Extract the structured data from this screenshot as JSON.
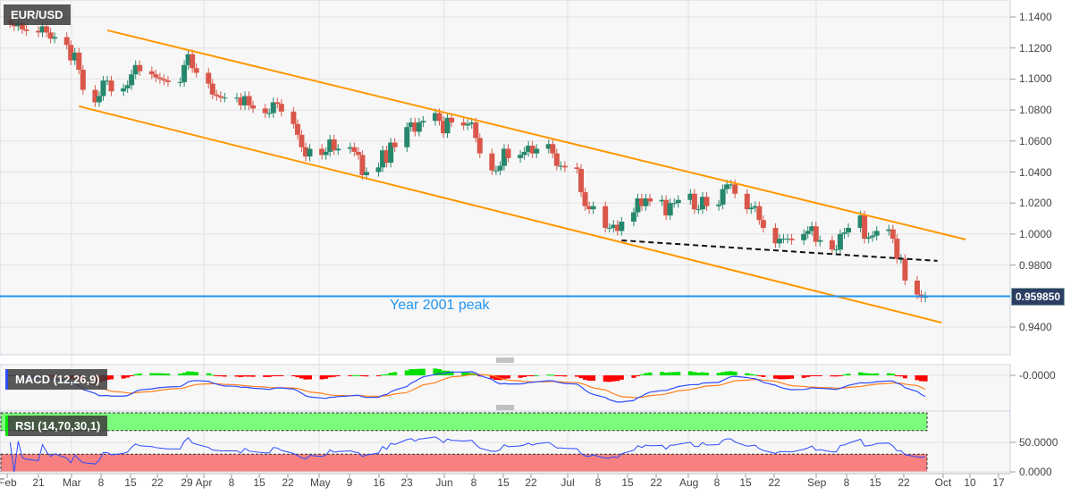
{
  "symbol": "EUR/USD",
  "last_price": "0.959850",
  "annotation": "Year 2001 peak",
  "colors": {
    "up": "#26876c",
    "down": "#d9574a",
    "channel": "#ff9800",
    "level": "#2196f3",
    "macd": "#2d4bff",
    "signal": "#ff7f1e",
    "hist_pos": "#00e000",
    "hist_neg": "#ff0000"
  },
  "chart_data": {
    "type": "candlestick",
    "title": "EUR/USD",
    "y_ticks": [
      "1.1400",
      "1.1200",
      "1.1000",
      "1.0800",
      "1.0600",
      "1.0400",
      "1.0200",
      "1.0000",
      "0.9800",
      "0.9400"
    ],
    "ylim": [
      0.925,
      1.145
    ],
    "x_ticks": [
      "Feb",
      "21",
      "Mar",
      "8",
      "15",
      "22",
      "29",
      "Apr",
      "8",
      "15",
      "22",
      "May",
      "9",
      "16",
      "23",
      "Jun",
      "8",
      "15",
      "22",
      "Jul",
      "8",
      "15",
      "22",
      "Aug",
      "8",
      "15",
      "22",
      "Sep",
      "8",
      "15",
      "22",
      "Oct",
      "10",
      "17"
    ],
    "weekly_closes": [
      {
        "week": "Feb 14",
        "c": [
          1.136,
          1.134,
          1.136,
          1.132,
          1.131
        ]
      },
      {
        "week": "Feb 21",
        "c": [
          1.13,
          1.134,
          1.13,
          1.126,
          1.127
        ]
      },
      {
        "week": "Feb 28",
        "c": [
          1.122,
          1.112,
          1.117,
          1.106,
          1.093
        ]
      },
      {
        "week": "Mar 7",
        "c": [
          1.085,
          1.089,
          1.099,
          1.099,
          1.092
        ]
      },
      {
        "week": "Mar 14",
        "c": [
          1.094,
          1.096,
          1.103,
          1.109,
          1.105
        ]
      },
      {
        "week": "Mar 21",
        "c": [
          1.103,
          1.101,
          1.1,
          1.099,
          1.098
        ]
      },
      {
        "week": "Mar 28",
        "c": [
          1.098,
          1.109,
          1.116,
          1.107,
          1.104
        ]
      },
      {
        "week": "Apr 4",
        "c": [
          1.097,
          1.09,
          1.089,
          1.088,
          1.088
        ]
      },
      {
        "week": "Apr 11",
        "c": [
          1.088,
          1.083,
          1.089,
          1.083,
          1.081
        ]
      },
      {
        "week": "Apr 18",
        "c": [
          1.078,
          1.078,
          1.085,
          1.084,
          1.079
        ]
      },
      {
        "week": "Apr 25",
        "c": [
          1.071,
          1.064,
          1.056,
          1.05,
          1.055
        ]
      },
      {
        "week": "May 2",
        "c": [
          1.051,
          1.053,
          1.061,
          1.054,
          1.055
        ]
      },
      {
        "week": "May 9",
        "c": [
          1.056,
          1.053,
          1.051,
          1.038,
          1.04
        ]
      },
      {
        "week": "May 16",
        "c": [
          1.043,
          1.054,
          1.046,
          1.059,
          1.056
        ]
      },
      {
        "week": "May 23",
        "c": [
          1.069,
          1.072,
          1.066,
          1.072,
          1.073
        ]
      },
      {
        "week": "May 30",
        "c": [
          1.078,
          1.073,
          1.065,
          1.075,
          1.072
        ]
      },
      {
        "week": "Jun 6",
        "c": [
          1.07,
          1.071,
          1.072,
          1.062,
          1.052
        ]
      },
      {
        "week": "Jun 13",
        "c": [
          1.041,
          1.041,
          1.044,
          1.055,
          1.049
        ]
      },
      {
        "week": "Jun 20",
        "c": [
          1.051,
          1.053,
          1.057,
          1.052,
          1.055
        ]
      },
      {
        "week": "Jun 27",
        "c": [
          1.058,
          1.052,
          1.044,
          1.044,
          1.043
        ]
      },
      {
        "week": "Jul 4",
        "c": [
          1.042,
          1.027,
          1.018,
          1.016,
          1.018
        ]
      },
      {
        "week": "Jul 11",
        "c": [
          1.004,
          1.004,
          1.006,
          1.002,
          1.008
        ]
      },
      {
        "week": "Jul 18",
        "c": [
          1.014,
          1.023,
          1.018,
          1.023,
          1.021
        ]
      },
      {
        "week": "Jul 25",
        "c": [
          1.022,
          1.012,
          1.02,
          1.02,
          1.022
        ]
      },
      {
        "week": "Aug 1",
        "c": [
          1.026,
          1.016,
          1.016,
          1.024,
          1.018
        ]
      },
      {
        "week": "Aug 8",
        "c": [
          1.019,
          1.029,
          1.032,
          1.032,
          1.026
        ]
      },
      {
        "week": "Aug 15",
        "c": [
          1.016,
          1.017,
          1.018,
          1.009,
          1.004
        ]
      },
      {
        "week": "Aug 22",
        "c": [
          0.994,
          0.997,
          0.997,
          0.997,
          0.996
        ]
      },
      {
        "week": "Aug 29",
        "c": [
          1.0,
          1.002,
          1.005,
          0.995,
          0.996
        ]
      },
      {
        "week": "Sep 5",
        "c": [
          0.99,
          0.99,
          1.0,
          1.001,
          1.004
        ]
      },
      {
        "week": "Sep 12",
        "c": [
          1.012,
          0.997,
          0.998,
          0.999,
          1.002
        ]
      },
      {
        "week": "Sep 19",
        "c": [
          1.003,
          0.997,
          0.984,
          0.984,
          0.97
        ]
      },
      {
        "week": "Sep 26",
        "c": [
          0.961,
          0.959,
          0.9598
        ]
      }
    ],
    "trendlines": [
      {
        "name": "channel-upper",
        "style": "solid",
        "from": [
          "Mar 10",
          1.1314
        ],
        "to": [
          "Oct 8",
          0.9965
        ]
      },
      {
        "name": "channel-lower",
        "style": "solid",
        "from": [
          "Mar 3",
          1.0824
        ],
        "to": [
          "Oct 2",
          0.9429
        ]
      },
      {
        "name": "support",
        "style": "dashed",
        "from": [
          "Jul 15",
          0.9959
        ],
        "to": [
          "Oct 1",
          0.9827
        ]
      }
    ],
    "horizontal_level": 0.95985,
    "indicators": {
      "macd": {
        "label": "MACD (12,26,9)",
        "y_tick": "-0.0000"
      },
      "rsi": {
        "label": "RSI (14,70,30,1)",
        "y_ticks": [
          "50.0000",
          "0.0000"
        ],
        "upper": 70,
        "lower": 30
      }
    }
  }
}
